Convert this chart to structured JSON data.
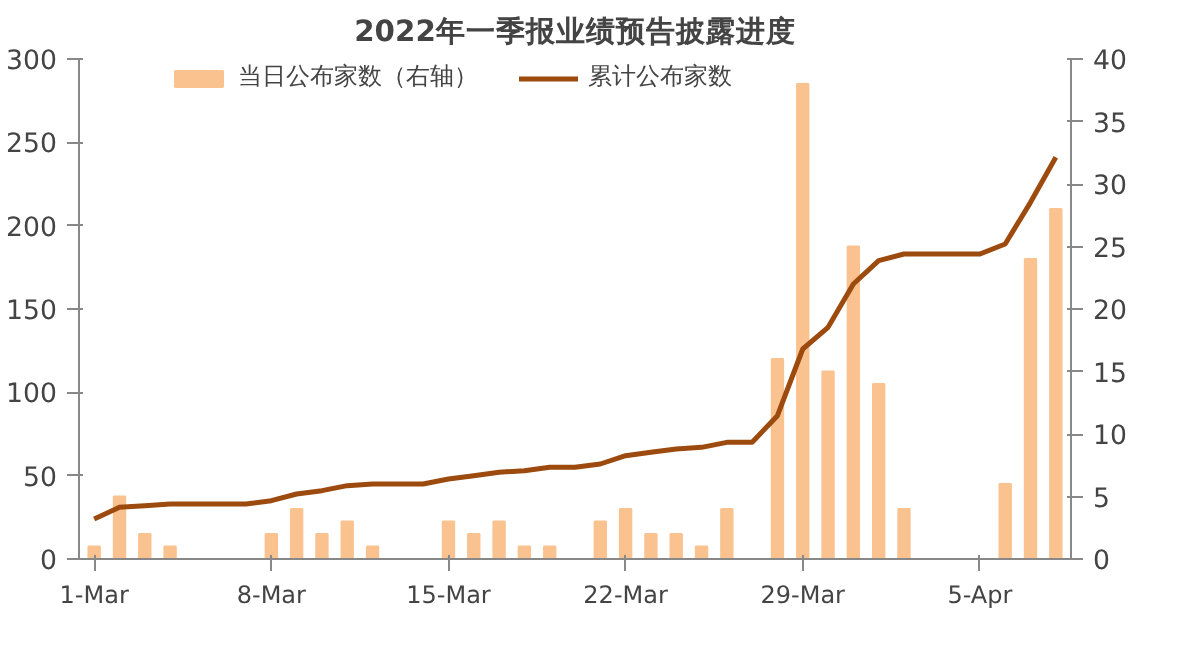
{
  "chart_data": {
    "type": "bar",
    "title": "2022年一季报业绩预告披露进度",
    "categories": [
      "1-Mar",
      null,
      null,
      null,
      null,
      null,
      null,
      "8-Mar",
      null,
      null,
      null,
      null,
      null,
      null,
      "15-Mar",
      null,
      null,
      null,
      null,
      null,
      null,
      "22-Mar",
      null,
      null,
      null,
      null,
      null,
      null,
      "29-Mar",
      null,
      null,
      null,
      null,
      null,
      null,
      "5-Apr",
      null,
      null,
      null
    ],
    "series": [
      {
        "name": "当日公布家数（右轴）",
        "axis": "y2",
        "color": "#f9c28f",
        "values": [
          1,
          5,
          2,
          1,
          0,
          0,
          0,
          2,
          4,
          2,
          3,
          1,
          0,
          0,
          3,
          2,
          3,
          1,
          1,
          0,
          3,
          4,
          2,
          2,
          1,
          4,
          0,
          16,
          38,
          15,
          25,
          14,
          4,
          0,
          0,
          0,
          6,
          24,
          28
        ]
      },
      {
        "name": "累计公布家数",
        "type": "line",
        "color": "#9c4a0d",
        "values": [
          24,
          31,
          32,
          33,
          33,
          33,
          33,
          35,
          39,
          41,
          44,
          45,
          45,
          45,
          48,
          50,
          52,
          53,
          55,
          55,
          57,
          62,
          64,
          66,
          67,
          70,
          70,
          86,
          126,
          139,
          165,
          179,
          183,
          183,
          183,
          183,
          189,
          214,
          241
        ]
      }
    ],
    "ylim": [
      0,
      300
    ],
    "yticks": [
      0,
      50,
      100,
      150,
      200,
      250,
      300
    ],
    "y2lim": [
      0,
      40
    ],
    "y2ticks": [
      0,
      5,
      10,
      15,
      20,
      25,
      30,
      35,
      40
    ],
    "legend": "top",
    "grid": false
  }
}
